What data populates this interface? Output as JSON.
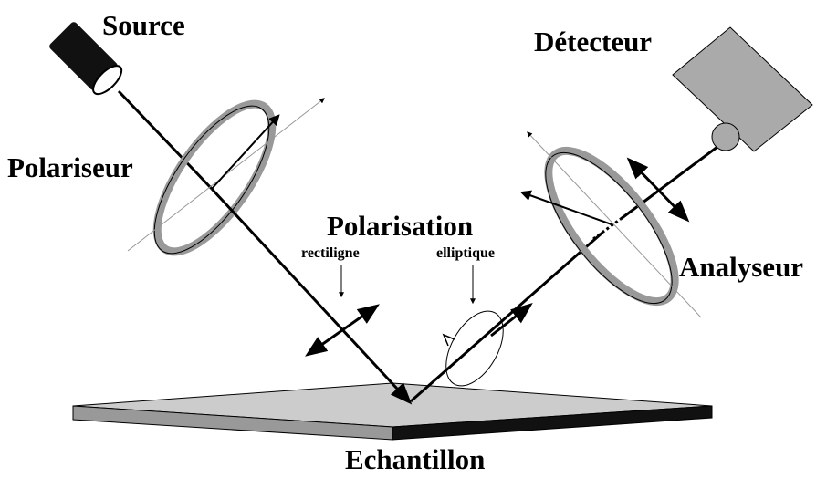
{
  "labels": {
    "source": "Source",
    "detector": "Détecteur",
    "polarizer": "Polariseur",
    "polarisation": "Polarisation",
    "rectilinear": "rectiligne",
    "elliptical": "elliptique",
    "analyzer": "Analyseur",
    "sample": "Echantillon"
  }
}
